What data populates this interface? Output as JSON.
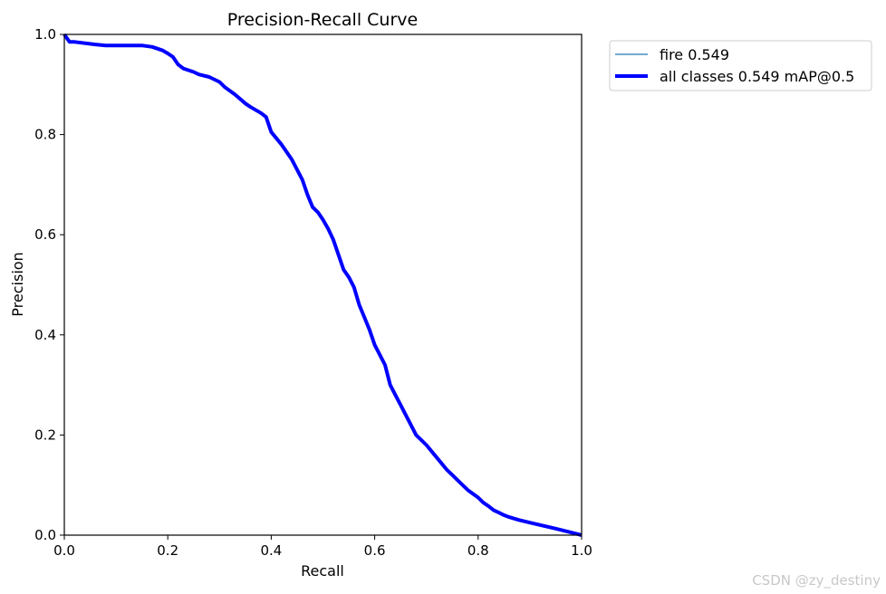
{
  "chart_data": {
    "type": "line",
    "title": "Precision-Recall Curve",
    "xlabel": "Recall",
    "ylabel": "Precision",
    "xlim": [
      0.0,
      1.0
    ],
    "ylim": [
      0.0,
      1.0
    ],
    "xticks": [
      "0.0",
      "0.2",
      "0.4",
      "0.6",
      "0.8",
      "1.0"
    ],
    "yticks": [
      "0.0",
      "0.2",
      "0.4",
      "0.6",
      "0.8",
      "1.0"
    ],
    "grid": false,
    "legend_position": "outside-top-right",
    "series": [
      {
        "name": "fire 0.549",
        "color": "#1f77b4",
        "style": "thin",
        "x": [
          0.0,
          0.01,
          0.02,
          0.06,
          0.08,
          0.1,
          0.15,
          0.17,
          0.19,
          0.2,
          0.21,
          0.22,
          0.23,
          0.25,
          0.26,
          0.28,
          0.3,
          0.31,
          0.33,
          0.35,
          0.36,
          0.38,
          0.39,
          0.4,
          0.42,
          0.44,
          0.45,
          0.46,
          0.47,
          0.48,
          0.49,
          0.5,
          0.51,
          0.52,
          0.53,
          0.54,
          0.55,
          0.56,
          0.57,
          0.58,
          0.59,
          0.6,
          0.61,
          0.62,
          0.63,
          0.64,
          0.65,
          0.66,
          0.67,
          0.68,
          0.69,
          0.7,
          0.72,
          0.74,
          0.75,
          0.76,
          0.78,
          0.8,
          0.81,
          0.82,
          0.83,
          0.84,
          0.85,
          0.86,
          0.87,
          0.88,
          0.9,
          0.95,
          1.0
        ],
        "y": [
          1.0,
          0.985,
          0.985,
          0.98,
          0.978,
          0.978,
          0.978,
          0.975,
          0.968,
          0.962,
          0.955,
          0.94,
          0.932,
          0.925,
          0.92,
          0.915,
          0.905,
          0.895,
          0.88,
          0.862,
          0.855,
          0.843,
          0.835,
          0.805,
          0.78,
          0.75,
          0.73,
          0.71,
          0.68,
          0.655,
          0.645,
          0.63,
          0.612,
          0.59,
          0.56,
          0.53,
          0.515,
          0.495,
          0.46,
          0.435,
          0.41,
          0.38,
          0.36,
          0.34,
          0.3,
          0.28,
          0.26,
          0.24,
          0.22,
          0.2,
          0.19,
          0.18,
          0.155,
          0.13,
          0.12,
          0.11,
          0.09,
          0.075,
          0.065,
          0.058,
          0.05,
          0.045,
          0.04,
          0.036,
          0.033,
          0.03,
          0.025,
          0.013,
          0.0
        ]
      },
      {
        "name": "all classes 0.549 mAP@0.5",
        "color": "#0000ff",
        "style": "thick",
        "x": [
          0.0,
          0.01,
          0.02,
          0.06,
          0.08,
          0.1,
          0.15,
          0.17,
          0.19,
          0.2,
          0.21,
          0.22,
          0.23,
          0.25,
          0.26,
          0.28,
          0.3,
          0.31,
          0.33,
          0.35,
          0.36,
          0.38,
          0.39,
          0.4,
          0.42,
          0.44,
          0.45,
          0.46,
          0.47,
          0.48,
          0.49,
          0.5,
          0.51,
          0.52,
          0.53,
          0.54,
          0.55,
          0.56,
          0.57,
          0.58,
          0.59,
          0.6,
          0.61,
          0.62,
          0.63,
          0.64,
          0.65,
          0.66,
          0.67,
          0.68,
          0.69,
          0.7,
          0.72,
          0.74,
          0.75,
          0.76,
          0.78,
          0.8,
          0.81,
          0.82,
          0.83,
          0.84,
          0.85,
          0.86,
          0.87,
          0.88,
          0.9,
          0.95,
          1.0
        ],
        "y": [
          1.0,
          0.985,
          0.985,
          0.98,
          0.978,
          0.978,
          0.978,
          0.975,
          0.968,
          0.962,
          0.955,
          0.94,
          0.932,
          0.925,
          0.92,
          0.915,
          0.905,
          0.895,
          0.88,
          0.862,
          0.855,
          0.843,
          0.835,
          0.805,
          0.78,
          0.75,
          0.73,
          0.71,
          0.68,
          0.655,
          0.645,
          0.63,
          0.612,
          0.59,
          0.56,
          0.53,
          0.515,
          0.495,
          0.46,
          0.435,
          0.41,
          0.38,
          0.36,
          0.34,
          0.3,
          0.28,
          0.26,
          0.24,
          0.22,
          0.2,
          0.19,
          0.18,
          0.155,
          0.13,
          0.12,
          0.11,
          0.09,
          0.075,
          0.065,
          0.058,
          0.05,
          0.045,
          0.04,
          0.036,
          0.033,
          0.03,
          0.025,
          0.013,
          0.0
        ]
      }
    ]
  },
  "watermark": "CSDN @zy_destiny"
}
